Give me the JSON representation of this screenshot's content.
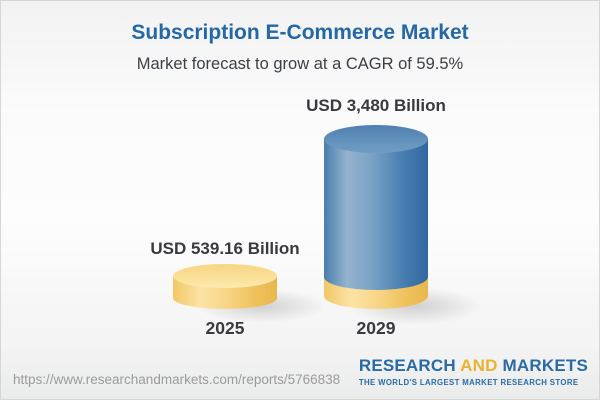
{
  "header": {
    "title": "Subscription E-Commerce Market",
    "subtitle": "Market forecast to grow at a CAGR of 59.5%"
  },
  "chart_data": {
    "type": "bar",
    "variant": "3d-cylinder",
    "title": "Subscription E-Commerce Market",
    "subtitle": "Market forecast to grow at a CAGR of 59.5%",
    "categories": [
      "2025",
      "2029"
    ],
    "values": [
      539.16,
      3480
    ],
    "value_labels": [
      "USD 539.16 Billion",
      "USD 3,480 Billion"
    ],
    "unit": "USD Billion",
    "cagr_percent": 59.5,
    "legend_position": "none",
    "grid": false,
    "colors": {
      "bar_2025": "#f6d27e",
      "bar_2029_body": "#5d8fbc",
      "bar_2029_base_band": "#f6c864",
      "title_text": "#2468a5",
      "label_text": "#3a3a3e"
    }
  },
  "footer": {
    "source_url": "https://www.researchandmarkets.com/reports/5766838",
    "logo": {
      "word_research": "RESEARCH",
      "word_and": "AND",
      "word_markets": "MARKETS",
      "tagline": "THE WORLD'S LARGEST MARKET RESEARCH STORE",
      "brand_blue": "#2a6ba5",
      "brand_gold": "#e9b233"
    }
  }
}
